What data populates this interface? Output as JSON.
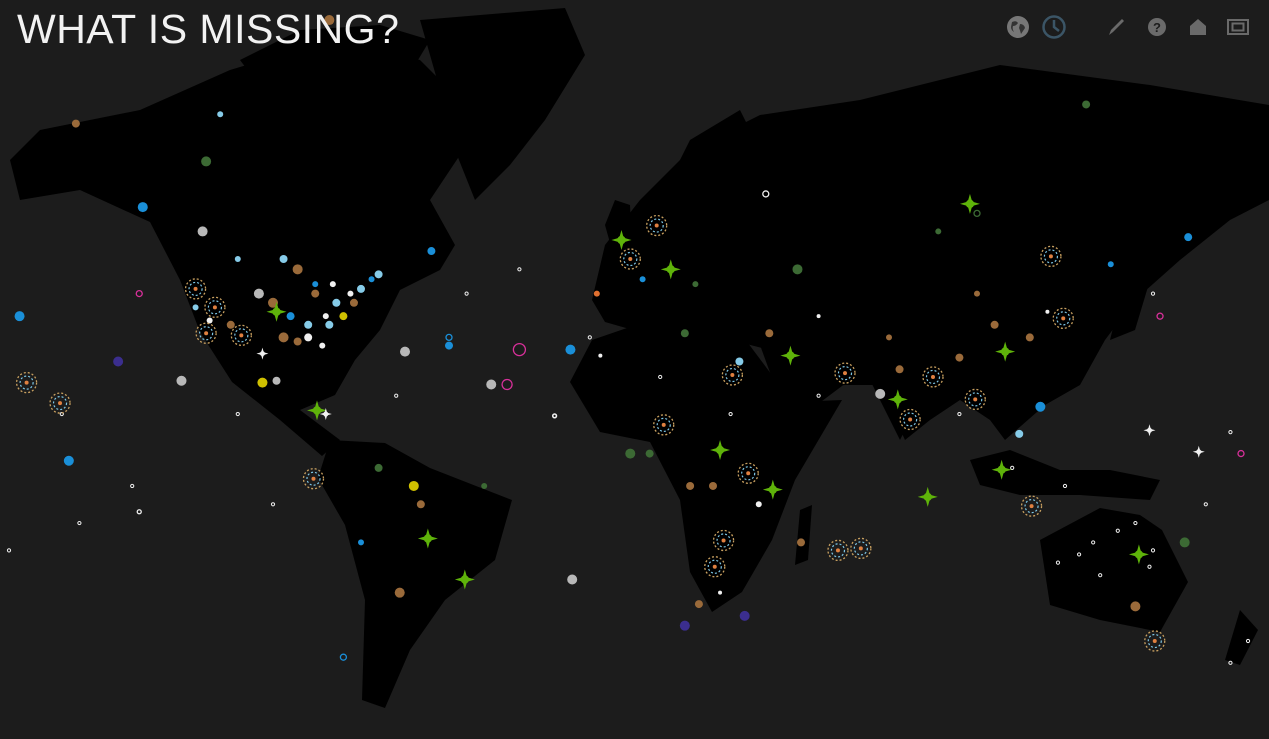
{
  "title": "WHAT IS MISSING?",
  "toolbar": [
    {
      "name": "globe-view",
      "icon": "globe-icon"
    },
    {
      "name": "timeline-view",
      "icon": "clock-icon",
      "active": true
    },
    {
      "name": "contribute",
      "icon": "pencil-icon"
    },
    {
      "name": "help",
      "icon": "question-icon"
    },
    {
      "name": "home",
      "icon": "home-icon"
    },
    {
      "name": "fullscreen",
      "icon": "fullscreen-icon"
    }
  ],
  "colors": {
    "background": "#1c1c1c",
    "land": "#000000",
    "star": "#5fb30a",
    "brown": "#9a6a3a",
    "blue": "#1a8fd8",
    "lightblue": "#86cbe8",
    "white": "#f0f0f0",
    "grey": "#b8b8b8",
    "yellow": "#cfc000",
    "darkgreen": "#3c6a34",
    "purple": "#3b2e8e",
    "pink": "#d8309a",
    "orange": "#e07030"
  },
  "stars": [
    [
      -99,
      36
    ],
    [
      -87.5,
      11
    ],
    [
      -56,
      -24
    ],
    [
      -45.5,
      -34
    ],
    [
      -1,
      50.5
    ],
    [
      13,
      45
    ],
    [
      47,
      25.5
    ],
    [
      27,
      0
    ],
    [
      98,
      56.5
    ],
    [
      108,
      26.5
    ],
    [
      77.5,
      14
    ],
    [
      107,
      -5.5
    ],
    [
      86,
      -13
    ],
    [
      146,
      -28
    ],
    [
      42,
      -11
    ]
  ],
  "white_stars": [
    [
      149,
      5.5
    ],
    [
      163,
      -0.5
    ],
    [
      -103,
      26
    ],
    [
      -85,
      10
    ]
  ],
  "rings": [
    [
      -122,
      41
    ],
    [
      -116.5,
      37
    ],
    [
      -109,
      30.5
    ],
    [
      -119,
      31
    ],
    [
      -170,
      18.5
    ],
    [
      -160.5,
      13
    ],
    [
      -88.5,
      -8
    ],
    [
      9,
      53
    ],
    [
      1.5,
      47
    ],
    [
      30.5,
      20.5
    ],
    [
      62.5,
      21
    ],
    [
      11,
      7
    ],
    [
      35,
      -6.5
    ],
    [
      121,
      47.5
    ],
    [
      124.5,
      34.5
    ],
    [
      87.5,
      20
    ],
    [
      99.5,
      14
    ],
    [
      81,
      8.5
    ],
    [
      115.5,
      -15.5
    ],
    [
      28,
      -24.5
    ],
    [
      25.5,
      -31
    ],
    [
      60.5,
      -27
    ],
    [
      67,
      -26.5
    ],
    [
      150.5,
      -47
    ]
  ],
  "dots": [
    [
      -100,
      38,
      "brown",
      5
    ],
    [
      -95,
      35,
      "blue",
      4
    ],
    [
      -90,
      33,
      "lightblue",
      4
    ],
    [
      -85,
      35,
      "white",
      3
    ],
    [
      -82,
      38,
      "lightblue",
      4
    ],
    [
      -88,
      40,
      "brown",
      4
    ],
    [
      -78,
      40,
      "white",
      3
    ],
    [
      -75,
      41,
      "lightblue",
      4
    ],
    [
      -80,
      35,
      "yellow",
      4
    ],
    [
      -97,
      30,
      "brown",
      5
    ],
    [
      -90,
      30,
      "white",
      4
    ],
    [
      -104,
      40,
      "grey",
      5
    ],
    [
      -112,
      33,
      "brown",
      4
    ],
    [
      -118,
      34,
      "white",
      3
    ],
    [
      -122,
      37,
      "lightblue",
      3
    ],
    [
      -103,
      18.5,
      "yellow",
      5
    ],
    [
      -99,
      19,
      "grey",
      4
    ],
    [
      -93,
      29,
      "brown",
      4
    ],
    [
      -86,
      28,
      "white",
      3
    ],
    [
      -84,
      33,
      "lightblue",
      4
    ],
    [
      -77,
      38,
      "brown",
      4
    ],
    [
      -72,
      43,
      "blue",
      3
    ],
    [
      -70,
      44,
      "lightblue",
      4
    ],
    [
      -93,
      45,
      "brown",
      5
    ],
    [
      -88,
      42,
      "blue",
      3
    ],
    [
      -83,
      42,
      "white",
      3
    ],
    [
      -97,
      47,
      "lightblue",
      4
    ],
    [
      -110,
      47,
      "lightblue",
      3
    ],
    [
      -55,
      48.5,
      "blue",
      4
    ],
    [
      -120,
      52,
      "grey",
      5
    ],
    [
      -84,
      76,
      "brown",
      5
    ],
    [
      -119,
      62.5,
      "darkgreen",
      5
    ],
    [
      -137,
      56,
      "blue",
      5
    ],
    [
      -156,
      67,
      "brown",
      4
    ],
    [
      -115,
      68,
      "lightblue",
      3
    ],
    [
      -172,
      35,
      "blue",
      5
    ],
    [
      -144,
      24,
      "purple",
      5
    ],
    [
      -126,
      19,
      "grey",
      5
    ],
    [
      -158,
      -3,
      "blue",
      5
    ],
    [
      -62.5,
      26.5,
      "grey",
      5
    ],
    [
      -38,
      18,
      "grey",
      5
    ],
    [
      -64,
      -37,
      "brown",
      5
    ],
    [
      -15,
      -34,
      "grey",
      5
    ],
    [
      17,
      -44,
      "purple",
      5
    ],
    [
      34,
      -42,
      "purple",
      5
    ],
    [
      50,
      -25,
      "brown",
      4
    ],
    [
      49,
      45,
      "darkgreen",
      5
    ],
    [
      89,
      52,
      "darkgreen",
      3
    ],
    [
      131,
      69,
      "darkgreen",
      4
    ],
    [
      138,
      46,
      "blue",
      3
    ],
    [
      160,
      51,
      "blue",
      4
    ],
    [
      118,
      12,
      "blue",
      5
    ],
    [
      159,
      -25,
      "darkgreen",
      5
    ],
    [
      145,
      -40,
      "brown",
      5
    ],
    [
      -15.5,
      27,
      "blue",
      5
    ],
    [
      -7,
      25.5,
      "white",
      2
    ],
    [
      1.5,
      -1,
      "darkgreen",
      5
    ],
    [
      7,
      -1,
      "darkgreen",
      4
    ],
    [
      18.5,
      -10,
      "brown",
      4
    ],
    [
      25,
      -10,
      "brown",
      4
    ],
    [
      38,
      -15,
      "white",
      3
    ],
    [
      27,
      -37,
      "white",
      2
    ],
    [
      21,
      -39.5,
      "brown",
      4
    ],
    [
      32.5,
      24,
      "lightblue",
      4
    ],
    [
      41,
      31,
      "brown",
      4
    ],
    [
      72.5,
      15.5,
      "grey",
      5
    ],
    [
      78,
      22,
      "brown",
      4
    ],
    [
      95,
      25,
      "brown",
      4
    ],
    [
      112,
      4.5,
      "lightblue",
      4
    ],
    [
      55,
      35,
      "white",
      2
    ],
    [
      17,
      31,
      "darkgreen",
      4
    ],
    [
      -50,
      28,
      "blue",
      4
    ],
    [
      -60,
      -10,
      "yellow",
      5
    ],
    [
      -70,
      -5,
      "darkgreen",
      4
    ],
    [
      -75,
      -25,
      "blue",
      3
    ],
    [
      -40,
      -10,
      "darkgreen",
      3
    ],
    [
      -58,
      -15,
      "brown",
      4
    ],
    [
      100,
      40,
      "brown",
      3
    ],
    [
      115,
      30,
      "brown",
      4
    ],
    [
      120,
      36,
      "white",
      2
    ],
    [
      105,
      33,
      "brown",
      4
    ],
    [
      75,
      30,
      "brown",
      3
    ],
    [
      -8,
      40,
      "orange",
      3
    ],
    [
      5,
      43,
      "blue",
      3
    ],
    [
      20,
      42,
      "darkgreen",
      3
    ]
  ],
  "open_circles": [
    [
      -30,
      27,
      "pink",
      6
    ],
    [
      -33.5,
      18,
      "pink",
      5
    ],
    [
      -138,
      40,
      "pink",
      3
    ],
    [
      40,
      58,
      "white",
      3
    ],
    [
      100,
      55,
      "darkgreen",
      3
    ],
    [
      -80,
      -50,
      "blue",
      3
    ],
    [
      -95,
      -65,
      "blue",
      3
    ],
    [
      152,
      35,
      "pink",
      3
    ],
    [
      175,
      -1,
      "pink",
      3
    ],
    [
      -50,
      30,
      "blue",
      3
    ],
    [
      -138,
      -17,
      "white",
      2
    ],
    [
      -20,
      9.5,
      "white",
      2
    ]
  ],
  "small_white": [
    [
      129,
      -28
    ],
    [
      135,
      -33
    ],
    [
      149,
      -31
    ],
    [
      123,
      -30
    ],
    [
      140,
      -22
    ],
    [
      133,
      -25
    ],
    [
      145,
      -20
    ],
    [
      150,
      -27
    ],
    [
      172,
      5
    ],
    [
      177,
      -47
    ],
    [
      172,
      -51
    ],
    [
      -175,
      -27
    ],
    [
      -20,
      9.5
    ],
    [
      -30,
      45
    ],
    [
      -45,
      40
    ],
    [
      110,
      -5
    ],
    [
      125,
      -10
    ],
    [
      165,
      -15
    ],
    [
      -110,
      10
    ],
    [
      -155,
      -20
    ],
    [
      -140,
      -10
    ],
    [
      -160,
      10
    ],
    [
      -65,
      15
    ],
    [
      -10,
      30
    ],
    [
      10,
      20
    ],
    [
      30,
      10
    ],
    [
      55,
      15
    ],
    [
      95,
      10
    ],
    [
      150,
      40
    ],
    [
      -100,
      -15
    ]
  ]
}
